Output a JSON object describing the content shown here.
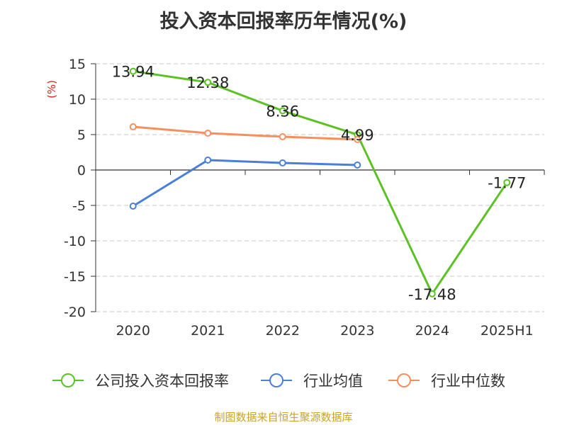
{
  "title": "投入资本回报率历年情况(%)",
  "source": "制图数据来自恒生聚源数据库",
  "chart_data": {
    "type": "line",
    "title": "投入资本回报率历年情况(%)",
    "ylabel": "(%)",
    "xlabel": "",
    "ylim": [
      -20,
      15
    ],
    "yticks": [
      15,
      10,
      5,
      0,
      -5,
      -10,
      -15,
      -20
    ],
    "categories": [
      "2020",
      "2021",
      "2022",
      "2023",
      "2024",
      "2025H1"
    ],
    "grid": true,
    "legend_position": "bottom",
    "series": [
      {
        "name": "公司投入资本回报率",
        "color": "#5bc224",
        "values": [
          13.94,
          12.38,
          8.36,
          4.99,
          -17.48,
          -1.77
        ],
        "labels": [
          "13.94",
          "12.38",
          "8.36",
          "4.99",
          "-17.48",
          "-1.77"
        ]
      },
      {
        "name": "行业均值",
        "color": "#4a7fd8",
        "values": [
          -5.1,
          1.4,
          1.0,
          0.7,
          null,
          null
        ]
      },
      {
        "name": "行业中位数",
        "color": "#f5905e",
        "values": [
          6.1,
          5.2,
          4.7,
          4.3,
          null,
          null
        ]
      }
    ]
  }
}
